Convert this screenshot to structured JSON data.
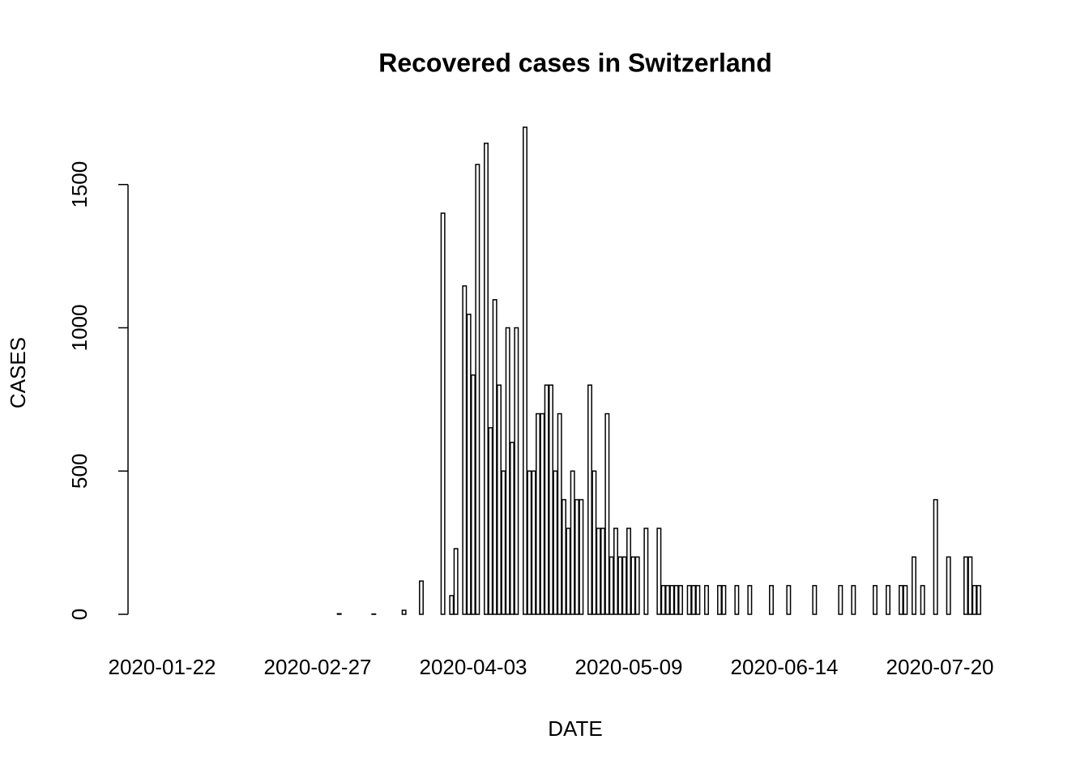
{
  "chart_data": {
    "type": "bar",
    "title": "Recovered cases in Switzerland",
    "x_label": "DATE",
    "y_label": "CASES",
    "categories": [
      "2020-01-22",
      null,
      null,
      null,
      null,
      null,
      null,
      null,
      null,
      null,
      null,
      null,
      null,
      null,
      null,
      null,
      null,
      null,
      null,
      null,
      null,
      null,
      null,
      null,
      null,
      null,
      null,
      null,
      null,
      null,
      null,
      null,
      null,
      null,
      null,
      null,
      "2020-02-27",
      null,
      null,
      null,
      null,
      null,
      null,
      null,
      null,
      null,
      null,
      null,
      null,
      null,
      null,
      null,
      null,
      null,
      null,
      null,
      null,
      null,
      null,
      null,
      null,
      null,
      null,
      null,
      null,
      null,
      null,
      null,
      null,
      null,
      null,
      null,
      "2020-04-03",
      null,
      null,
      null,
      null,
      null,
      null,
      null,
      null,
      null,
      null,
      null,
      null,
      null,
      null,
      null,
      null,
      null,
      null,
      null,
      null,
      null,
      null,
      null,
      null,
      null,
      null,
      null,
      null,
      null,
      null,
      null,
      null,
      null,
      null,
      null,
      "2020-05-09",
      null,
      null,
      null,
      null,
      null,
      null,
      null,
      null,
      null,
      null,
      null,
      null,
      null,
      null,
      null,
      null,
      null,
      null,
      null,
      null,
      null,
      null,
      null,
      null,
      null,
      null,
      null,
      null,
      null,
      null,
      null,
      null,
      null,
      null,
      null,
      "2020-06-14",
      null,
      null,
      null,
      null,
      null,
      null,
      null,
      null,
      null,
      null,
      null,
      null,
      null,
      null,
      null,
      null,
      null,
      null,
      null,
      null,
      null,
      null,
      null,
      null,
      null,
      null,
      null,
      null,
      null,
      null,
      null,
      null,
      null,
      null,
      null,
      "2020-07-20",
      null,
      null,
      null,
      null,
      null,
      null,
      null,
      null,
      null
    ],
    "values": [
      0,
      0,
      0,
      0,
      0,
      0,
      0,
      0,
      0,
      0,
      0,
      0,
      0,
      0,
      0,
      0,
      0,
      0,
      0,
      0,
      0,
      0,
      0,
      0,
      0,
      0,
      0,
      0,
      0,
      0,
      0,
      0,
      0,
      0,
      0,
      0,
      0,
      0,
      0,
      0,
      0,
      2,
      0,
      0,
      0,
      0,
      0,
      0,
      0,
      1,
      0,
      0,
      0,
      0,
      0,
      0,
      14,
      0,
      0,
      0,
      116,
      0,
      0,
      0,
      0,
      1400,
      0,
      65,
      229,
      0,
      1146,
      1047,
      835,
      1570,
      0,
      1644,
      651,
      1098,
      800,
      500,
      1000,
      600,
      1000,
      0,
      1700,
      500,
      500,
      700,
      700,
      800,
      800,
      500,
      700,
      400,
      300,
      500,
      400,
      400,
      0,
      800,
      500,
      300,
      300,
      700,
      200,
      300,
      200,
      200,
      300,
      200,
      200,
      0,
      300,
      0,
      0,
      300,
      100,
      100,
      100,
      100,
      100,
      0,
      100,
      100,
      100,
      0,
      100,
      0,
      0,
      100,
      100,
      0,
      0,
      100,
      0,
      0,
      100,
      0,
      0,
      0,
      0,
      100,
      0,
      0,
      0,
      100,
      0,
      0,
      0,
      0,
      0,
      100,
      0,
      0,
      0,
      0,
      0,
      100,
      0,
      0,
      100,
      0,
      0,
      0,
      0,
      100,
      0,
      0,
      100,
      0,
      0,
      100,
      100,
      0,
      200,
      0,
      100,
      0,
      0,
      400,
      0,
      0,
      200,
      0,
      0,
      0,
      200,
      200,
      100,
      100
    ],
    "color": "#ffffff",
    "edge_color": "#000000",
    "ylim": [
      0,
      1700
    ],
    "yticks": [
      0,
      500,
      1000,
      1500
    ]
  }
}
